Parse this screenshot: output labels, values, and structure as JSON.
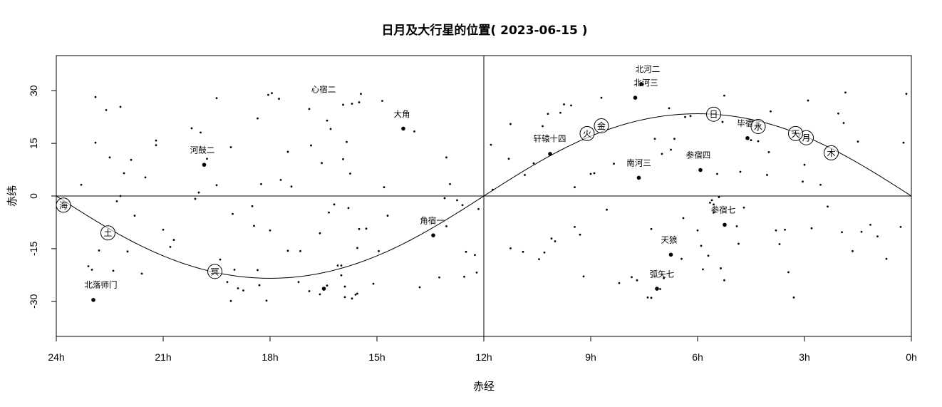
{
  "chart_data": {
    "type": "scatter",
    "title": "日月及大行星的位置( 2023-06-15 )",
    "xlabel": "赤经",
    "ylabel": "赤纬",
    "xlim": [
      24,
      0
    ],
    "ylim": [
      -40,
      40
    ],
    "x_ticks": [
      {
        "value": 24,
        "label": "24h"
      },
      {
        "value": 21,
        "label": "21h"
      },
      {
        "value": 18,
        "label": "18h"
      },
      {
        "value": 15,
        "label": "15h"
      },
      {
        "value": 12,
        "label": "12h"
      },
      {
        "value": 9,
        "label": "9h"
      },
      {
        "value": 6,
        "label": "6h"
      },
      {
        "value": 3,
        "label": "3h"
      },
      {
        "value": 0,
        "label": "0h"
      }
    ],
    "y_ticks": [
      {
        "value": 30,
        "label": "30"
      },
      {
        "value": 15,
        "label": "15"
      },
      {
        "value": 0,
        "label": "0"
      },
      {
        "value": -15,
        "label": "-15"
      },
      {
        "value": -30,
        "label": "-30"
      }
    ],
    "ecliptic_obliquity": 23.44,
    "bodies": [
      {
        "name": "日",
        "ra": 5.55,
        "dec": 23.3
      },
      {
        "name": "月",
        "ra": 2.95,
        "dec": 16.6
      },
      {
        "name": "水",
        "ra": 4.3,
        "dec": 19.8
      },
      {
        "name": "金",
        "ra": 8.7,
        "dec": 20.0
      },
      {
        "name": "火",
        "ra": 9.1,
        "dec": 17.8
      },
      {
        "name": "木",
        "ra": 2.25,
        "dec": 12.3
      },
      {
        "name": "土",
        "ra": 22.55,
        "dec": -10.5
      },
      {
        "name": "天",
        "ra": 3.25,
        "dec": 17.8
      },
      {
        "name": "海",
        "ra": 23.8,
        "dec": -2.6
      },
      {
        "name": "冥",
        "ra": 19.55,
        "dec": -21.5
      }
    ],
    "bright_stars": [
      {
        "name": "北河二",
        "ra": 7.58,
        "dec": 31.9,
        "label_ra": 7.4,
        "label_dec": 36.1
      },
      {
        "name": "北河三",
        "ra": 7.75,
        "dec": 28.0,
        "label_ra": 7.45,
        "label_dec": 32.3
      },
      {
        "name": "心宿二",
        "ra": 16.49,
        "dec": -26.4,
        "label_ra": 16.5,
        "label_dec": 30.4
      },
      {
        "name": "大角",
        "ra": 14.26,
        "dec": 19.2,
        "label_ra": 14.3,
        "label_dec": 23.4
      },
      {
        "name": "轩辕十四",
        "ra": 10.14,
        "dec": 12.0,
        "label_ra": 10.15,
        "label_dec": 16.3
      },
      {
        "name": "毕宿五",
        "ra": 4.6,
        "dec": 16.5,
        "label_ra": 4.55,
        "label_dec": 20.7
      },
      {
        "name": "河鼓二",
        "ra": 19.85,
        "dec": 8.9,
        "label_ra": 19.9,
        "label_dec": 13.1
      },
      {
        "name": "参宿四",
        "ra": 5.92,
        "dec": 7.4,
        "label_ra": 5.98,
        "label_dec": 11.7
      },
      {
        "name": "南河三",
        "ra": 7.65,
        "dec": 5.2,
        "label_ra": 7.65,
        "label_dec": 9.4
      },
      {
        "name": "角宿一",
        "ra": 13.42,
        "dec": -11.2,
        "label_ra": 13.45,
        "label_dec": -7.0
      },
      {
        "name": "参宿七",
        "ra": 5.24,
        "dec": -8.2,
        "label_ra": 5.28,
        "label_dec": -4.0
      },
      {
        "name": "天狼",
        "ra": 6.75,
        "dec": -16.7,
        "label_ra": 6.8,
        "label_dec": -12.5
      },
      {
        "name": "弧矢七",
        "ra": 7.14,
        "dec": -26.4,
        "label_ra": 7.0,
        "label_dec": -22.2
      },
      {
        "name": "北落师门",
        "ra": 22.96,
        "dec": -29.6,
        "label_ra": 22.75,
        "label_dec": -25.3
      }
    ],
    "stars": [
      [
        22.9,
        28.2
      ],
      [
        22.9,
        15.2
      ],
      [
        22.6,
        24.5
      ],
      [
        22.5,
        11.0
      ],
      [
        23.3,
        3.2
      ],
      [
        22.2,
        25.4
      ],
      [
        21.9,
        10.3
      ],
      [
        22.1,
        6.5
      ],
      [
        21.5,
        5.3
      ],
      [
        22.2,
        0.0
      ],
      [
        22.3,
        -1.5
      ],
      [
        21.8,
        -5.6
      ],
      [
        21.0,
        -9.6
      ],
      [
        20.7,
        -12.5
      ],
      [
        20.8,
        -14.5
      ],
      [
        22.0,
        -15.8
      ],
      [
        22.4,
        -21.3
      ],
      [
        21.6,
        -22.1
      ],
      [
        23.1,
        -20.0
      ],
      [
        22.8,
        -15.5
      ],
      [
        23.0,
        -21.0
      ],
      [
        21.2,
        15.8
      ],
      [
        21.2,
        14.5
      ],
      [
        20.2,
        19.3
      ],
      [
        19.95,
        18.1
      ],
      [
        19.77,
        10.6
      ],
      [
        20.1,
        -0.8
      ],
      [
        20.0,
        1.0
      ],
      [
        19.1,
        13.9
      ],
      [
        19.5,
        27.9
      ],
      [
        19.05,
        -5.1
      ],
      [
        19.5,
        3.1
      ],
      [
        19.0,
        -21.0
      ],
      [
        19.2,
        -24.5
      ],
      [
        19.4,
        -18.1
      ],
      [
        19.1,
        -29.9
      ],
      [
        18.9,
        -26.3
      ],
      [
        18.75,
        -26.9
      ],
      [
        18.3,
        -25.4
      ],
      [
        18.1,
        -29.8
      ],
      [
        18.5,
        -2.9
      ],
      [
        18.45,
        -8.5
      ],
      [
        18.35,
        -21.1
      ],
      [
        18.25,
        3.4
      ],
      [
        18.0,
        -9.8
      ],
      [
        17.95,
        29.3
      ],
      [
        18.35,
        22.1
      ],
      [
        18.05,
        28.8
      ],
      [
        17.75,
        27.7
      ],
      [
        17.5,
        12.6
      ],
      [
        17.7,
        4.6
      ],
      [
        17.4,
        2.7
      ],
      [
        17.15,
        -15.7
      ],
      [
        17.5,
        -15.6
      ],
      [
        17.2,
        -24.5
      ],
      [
        16.9,
        24.8
      ],
      [
        16.85,
        14.4
      ],
      [
        16.4,
        21.5
      ],
      [
        16.3,
        19.1
      ],
      [
        16.55,
        9.4
      ],
      [
        16.6,
        -10.6
      ],
      [
        16.35,
        -4.7
      ],
      [
        16.2,
        -2.4
      ],
      [
        16.9,
        -27.1
      ],
      [
        16.0,
        -19.8
      ],
      [
        16.0,
        -22.6
      ],
      [
        15.9,
        -25.8
      ],
      [
        15.7,
        -29.2
      ],
      [
        15.9,
        -28.8
      ],
      [
        16.6,
        -28.0
      ],
      [
        16.4,
        -25.5
      ],
      [
        16.1,
        -19.8
      ],
      [
        15.95,
        26.0
      ],
      [
        15.7,
        26.3
      ],
      [
        15.5,
        26.7
      ],
      [
        15.45,
        29.1
      ],
      [
        15.85,
        15.4
      ],
      [
        15.95,
        10.5
      ],
      [
        15.75,
        6.4
      ],
      [
        15.8,
        -3.4
      ],
      [
        15.5,
        -9.4
      ],
      [
        15.3,
        -9.3
      ],
      [
        15.55,
        -14.8
      ],
      [
        15.6,
        -28.1
      ],
      [
        15.55,
        -27.8
      ],
      [
        15.1,
        -25.0
      ],
      [
        14.85,
        27.1
      ],
      [
        14.7,
        -5.6
      ],
      [
        14.95,
        -15.7
      ],
      [
        14.8,
        2.5
      ],
      [
        13.95,
        18.4
      ],
      [
        13.8,
        -26.0
      ],
      [
        13.1,
        -0.6
      ],
      [
        13.05,
        -8.6
      ],
      [
        13.25,
        -23.2
      ],
      [
        13.05,
        11.0
      ],
      [
        12.95,
        3.4
      ],
      [
        12.75,
        -1.2
      ],
      [
        12.6,
        -2.6
      ],
      [
        12.5,
        -15.9
      ],
      [
        12.25,
        -16.8
      ],
      [
        12.55,
        -23.0
      ],
      [
        12.2,
        -21.8
      ],
      [
        12.15,
        -3.7
      ],
      [
        11.8,
        14.6
      ],
      [
        11.75,
        1.8
      ],
      [
        11.25,
        20.5
      ],
      [
        11.3,
        10.6
      ],
      [
        11.25,
        -14.9
      ],
      [
        10.9,
        -15.9
      ],
      [
        10.85,
        6.0
      ],
      [
        10.6,
        9.3
      ],
      [
        10.45,
        -18.0
      ],
      [
        10.3,
        -16.1
      ],
      [
        10.35,
        19.9
      ],
      [
        10.2,
        23.4
      ],
      [
        10.1,
        -12.1
      ],
      [
        10.0,
        -12.9
      ],
      [
        9.85,
        23.7
      ],
      [
        9.55,
        25.8
      ],
      [
        9.75,
        26.1
      ],
      [
        9.45,
        2.5
      ],
      [
        9.45,
        -8.8
      ],
      [
        9.3,
        -11.0
      ],
      [
        9.2,
        -22.9
      ],
      [
        9.0,
        6.3
      ],
      [
        8.9,
        6.5
      ],
      [
        8.55,
        -3.9
      ],
      [
        8.7,
        28.0
      ],
      [
        8.2,
        -24.8
      ],
      [
        8.35,
        9.2
      ],
      [
        7.85,
        -23.1
      ],
      [
        7.7,
        -24.0
      ],
      [
        7.3,
        -9.4
      ],
      [
        7.2,
        16.3
      ],
      [
        7.4,
        -28.9
      ],
      [
        7.3,
        -29.0
      ],
      [
        7.05,
        -26.5
      ],
      [
        7.0,
        12.0
      ],
      [
        6.95,
        -23.4
      ],
      [
        6.8,
        25.0
      ],
      [
        6.75,
        13.2
      ],
      [
        6.65,
        16.3
      ],
      [
        6.45,
        -17.9
      ],
      [
        6.35,
        22.5
      ],
      [
        6.2,
        22.8
      ],
      [
        6.4,
        -6.3
      ],
      [
        6.0,
        -9.8
      ],
      [
        5.9,
        -14.2
      ],
      [
        5.85,
        -20.9
      ],
      [
        5.7,
        -17.0
      ],
      [
        5.65,
        -1.9
      ],
      [
        5.6,
        -1.2
      ],
      [
        5.55,
        -2.4
      ],
      [
        5.55,
        -4.6
      ],
      [
        5.45,
        6.3
      ],
      [
        5.4,
        -0.3
      ],
      [
        5.3,
        21.1
      ],
      [
        5.25,
        28.6
      ],
      [
        5.35,
        -20.6
      ],
      [
        5.25,
        -24.0
      ],
      [
        4.9,
        -8.6
      ],
      [
        4.85,
        -13.6
      ],
      [
        4.7,
        -3.3
      ],
      [
        4.8,
        6.9
      ],
      [
        4.6,
        16.5
      ],
      [
        4.5,
        15.9
      ],
      [
        4.3,
        15.6
      ],
      [
        4.0,
        12.5
      ],
      [
        4.05,
        6.0
      ],
      [
        3.95,
        24.1
      ],
      [
        3.8,
        -9.8
      ],
      [
        3.7,
        -13.7
      ],
      [
        3.55,
        -9.6
      ],
      [
        3.45,
        -21.7
      ],
      [
        3.3,
        -28.9
      ],
      [
        3.05,
        4.1
      ],
      [
        2.8,
        -9.2
      ],
      [
        2.9,
        27.2
      ],
      [
        3.0,
        8.9
      ],
      [
        2.55,
        3.2
      ],
      [
        2.35,
        -3.0
      ],
      [
        2.05,
        23.5
      ],
      [
        1.9,
        20.8
      ],
      [
        1.85,
        29.5
      ],
      [
        1.95,
        -10.3
      ],
      [
        1.65,
        -15.7
      ],
      [
        1.5,
        15.5
      ],
      [
        1.4,
        -10.2
      ],
      [
        1.15,
        -8.2
      ],
      [
        0.95,
        -11.5
      ],
      [
        0.7,
        -17.9
      ],
      [
        0.3,
        -8.8
      ],
      [
        0.22,
        15.2
      ],
      [
        0.14,
        29.1
      ]
    ]
  }
}
